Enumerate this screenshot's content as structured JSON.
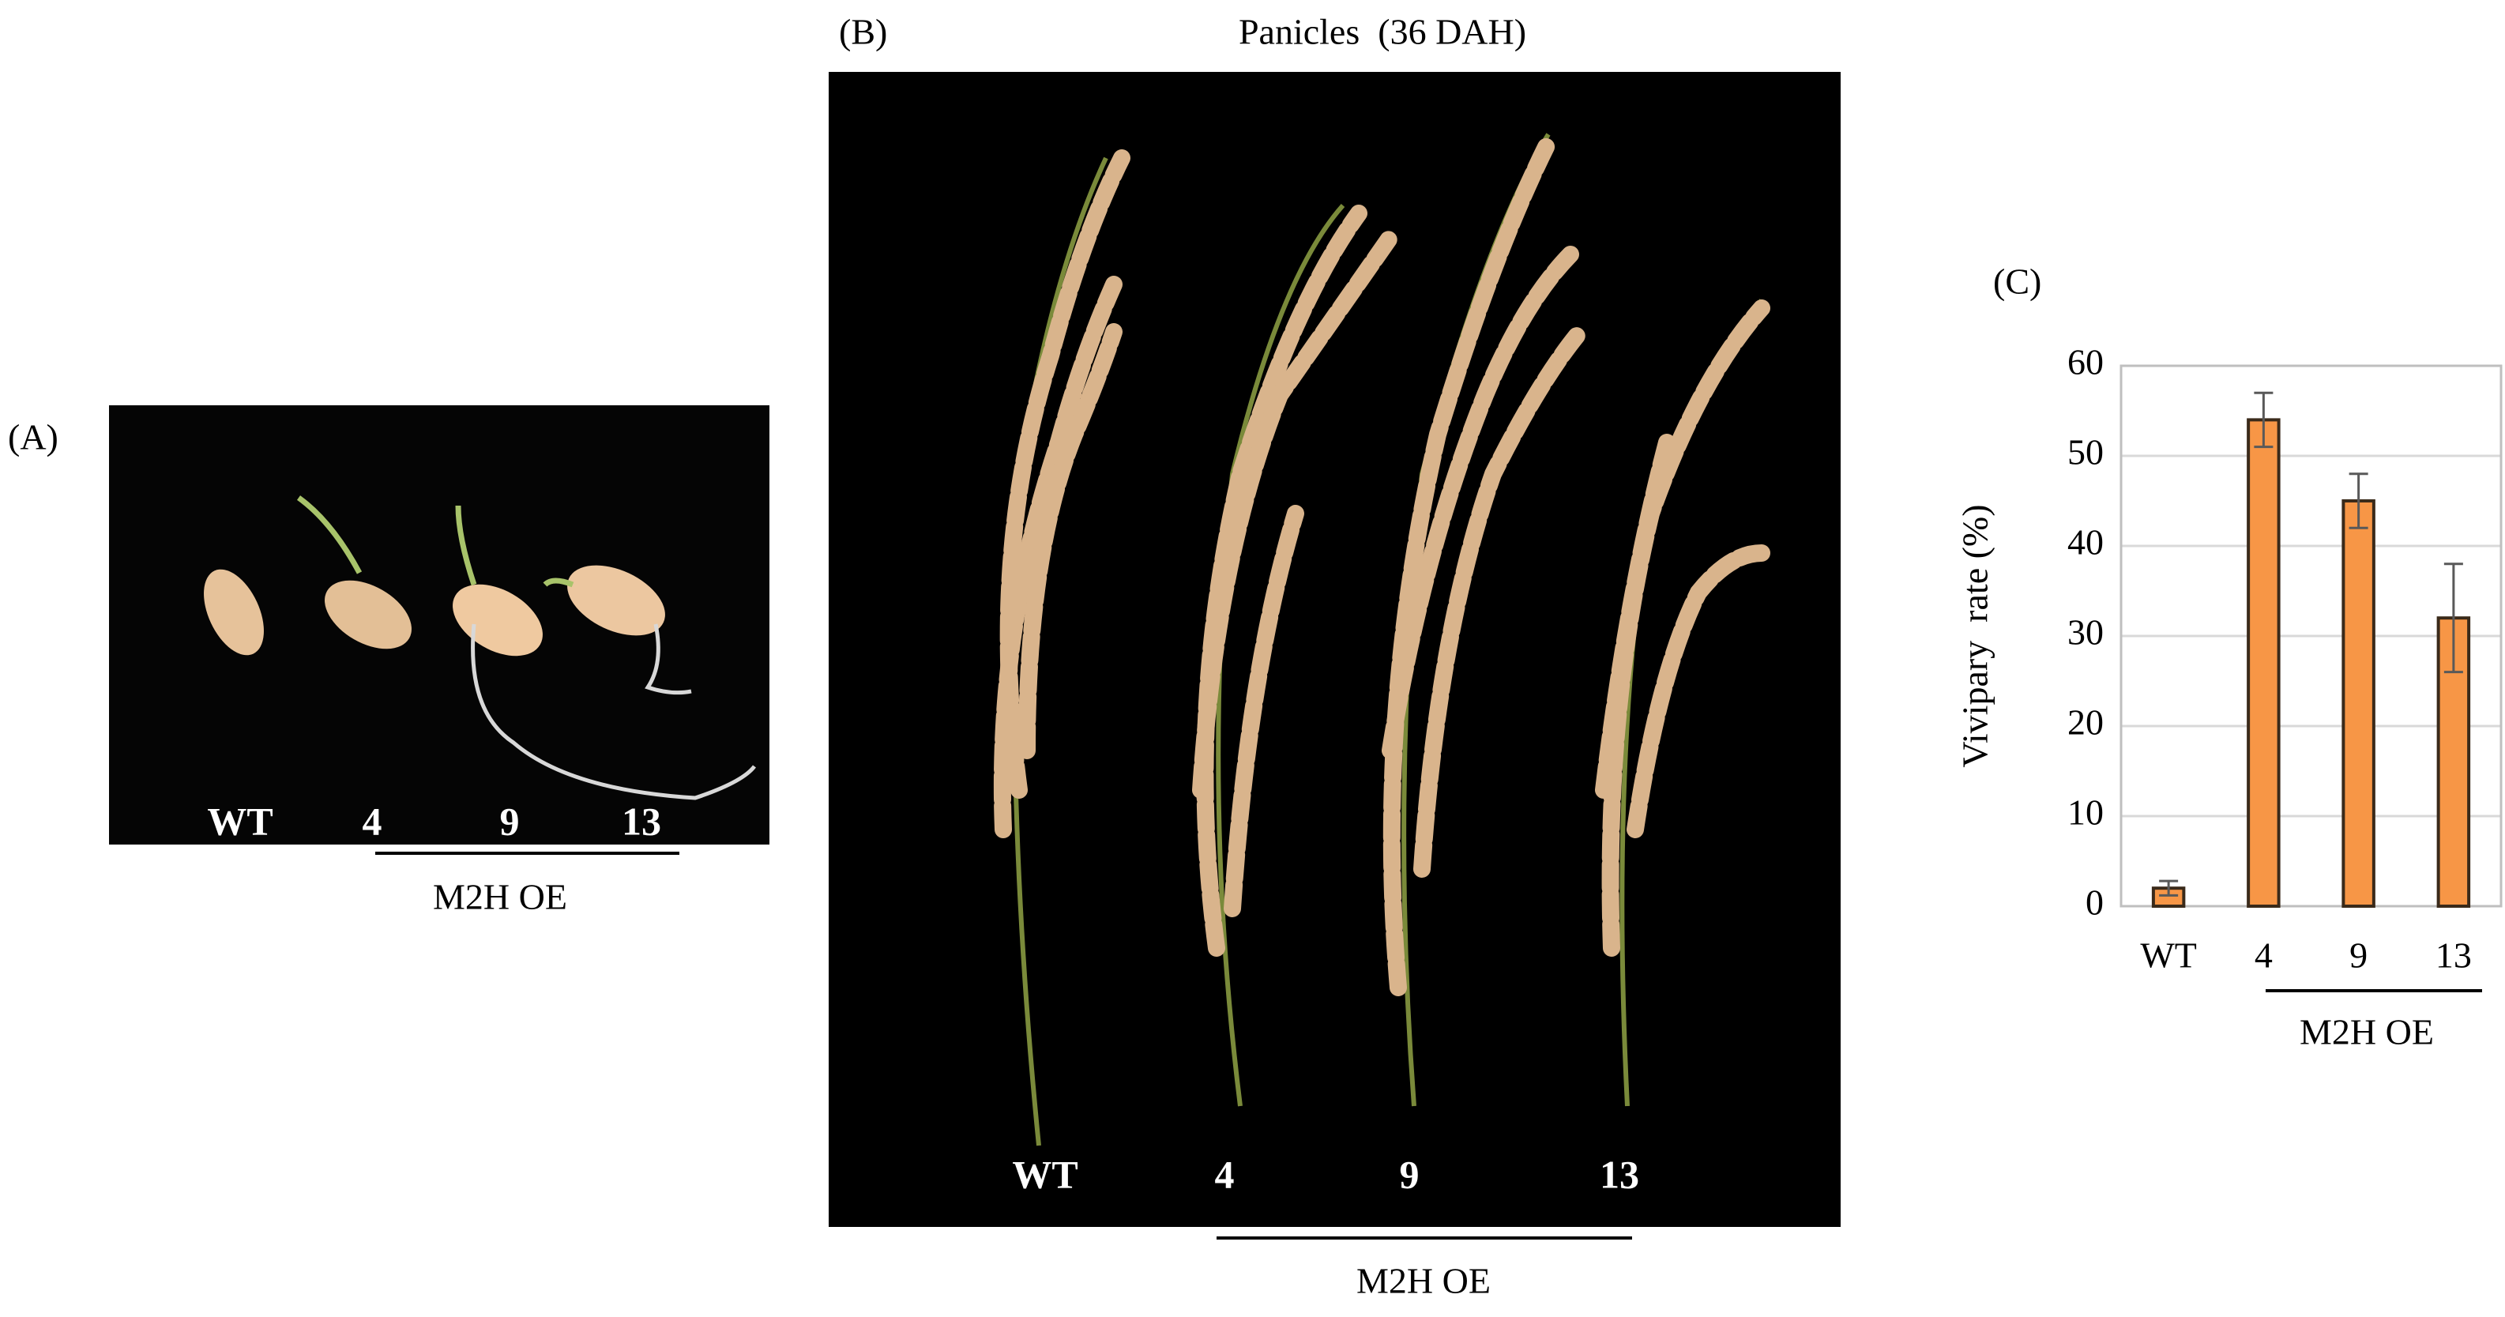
{
  "panel_a": {
    "label": "(A)",
    "sample_labels": [
      "WT",
      "4",
      "9",
      "13"
    ],
    "group_label": "M2H OE"
  },
  "panel_b": {
    "label": "(B)",
    "title": "Panicles  (36 DAH)",
    "sample_labels": [
      "WT",
      "4",
      "9",
      "13"
    ],
    "group_label": "M2H OE"
  },
  "chart_data": {
    "type": "bar",
    "panel_label": "(C)",
    "y_label": "Vivipary  rate (%)",
    "categories": [
      "WT",
      "4",
      "9",
      "13"
    ],
    "values": [
      2,
      54,
      45,
      32
    ],
    "errors": [
      0.8,
      3,
      3,
      6
    ],
    "color": "#f79646",
    "ylim": [
      0,
      60
    ],
    "yticks": [
      0,
      10,
      20,
      30,
      40,
      50,
      60
    ],
    "grid": true,
    "group_label": "M2H OE"
  }
}
